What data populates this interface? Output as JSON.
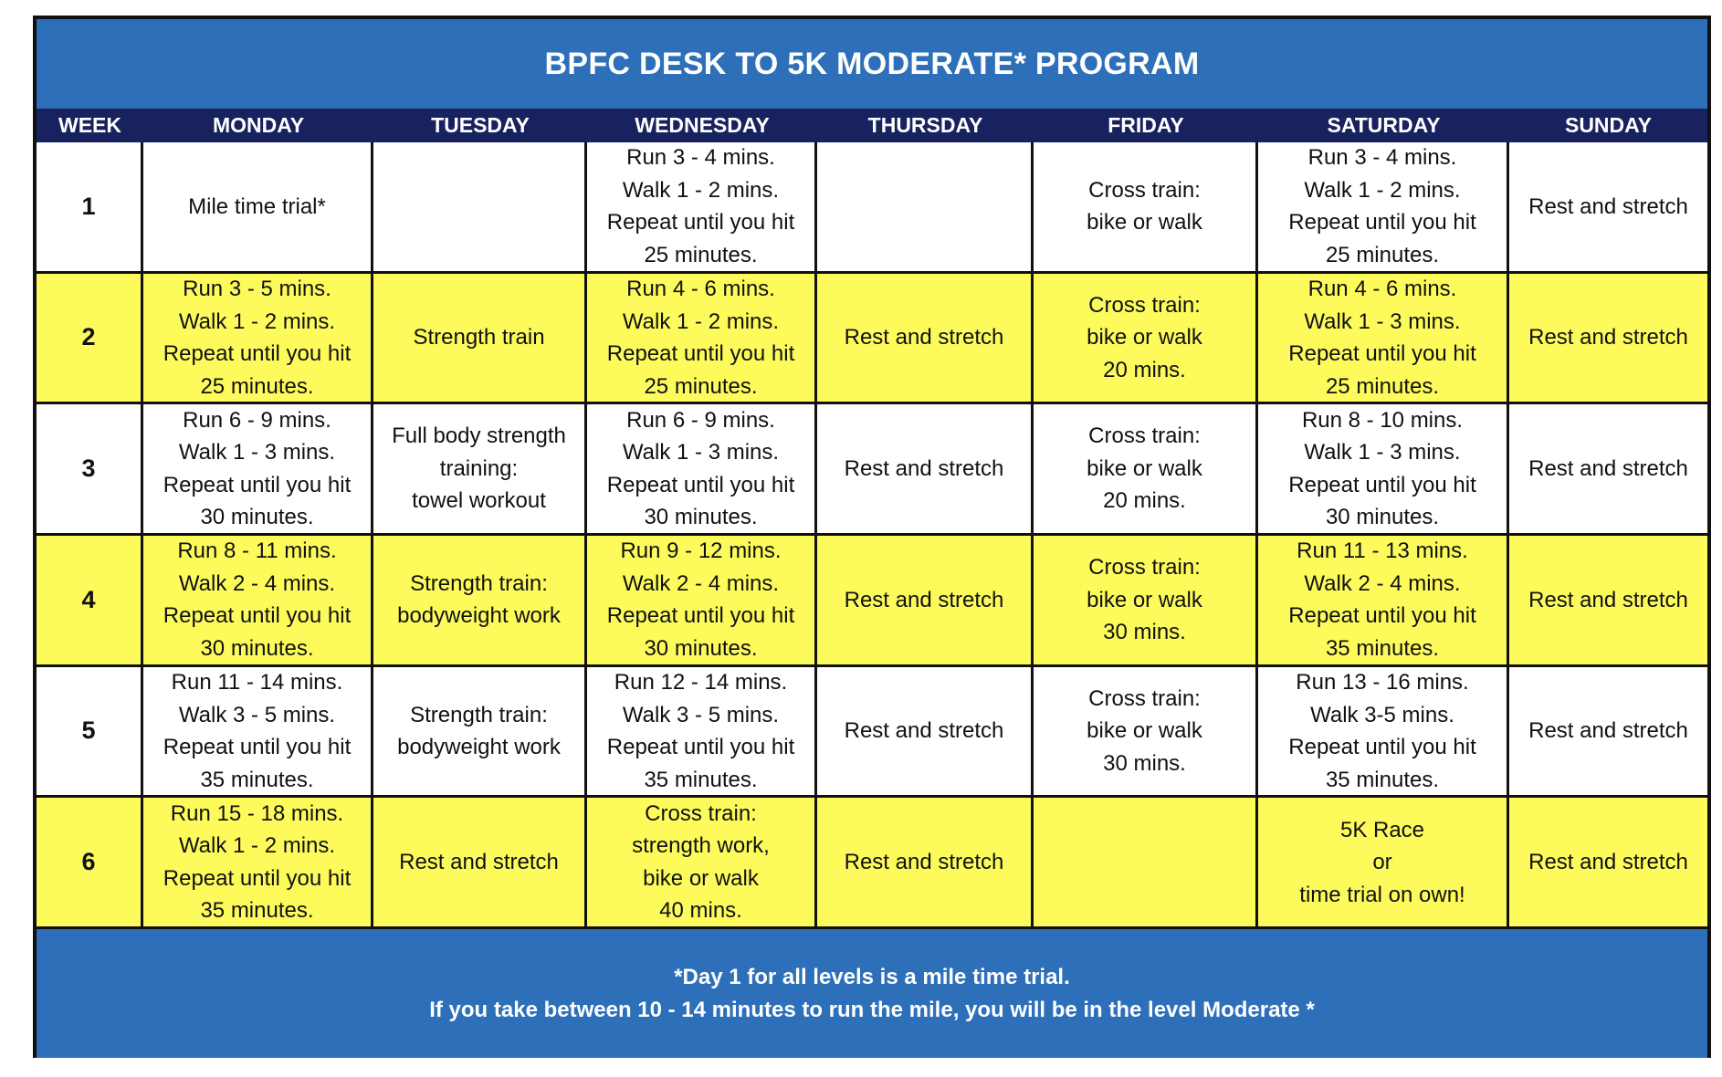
{
  "title": "BPFC DESK TO 5K  MODERATE* PROGRAM",
  "headers": [
    "WEEK",
    "MONDAY",
    "TUESDAY",
    "WEDNESDAY",
    "THURSDAY",
    "FRIDAY",
    "SATURDAY",
    "SUNDAY"
  ],
  "colors": {
    "title_bg": "#2d6fb8",
    "header_bg": "#17225e",
    "row_yellow": "#fdfb5b",
    "row_white": "#ffffff"
  },
  "weeks": [
    {
      "week": "1",
      "monday": "Mile time trial*",
      "tuesday": "",
      "wednesday": "Run 3 - 4 mins.\nWalk 1 - 2 mins.\nRepeat until you hit\n25 minutes.",
      "thursday": "",
      "friday": "Cross train:\nbike or walk",
      "saturday": "Run 3  - 4 mins.\nWalk 1 - 2 mins.\nRepeat until you hit\n25 minutes.",
      "sunday": "Rest and stretch"
    },
    {
      "week": "2",
      "monday": "Run 3 - 5 mins.\nWalk 1 - 2 mins.\nRepeat until you hit\n25 minutes.",
      "tuesday": "Strength train",
      "wednesday": "Run 4  - 6 mins.\nWalk 1 - 2 mins.\nRepeat until you hit\n25 minutes.",
      "thursday": "Rest and stretch",
      "friday": "Cross train:\nbike or walk\n20 mins.",
      "saturday": "Run 4  - 6 mins.\nWalk 1 - 3 mins.\nRepeat until you hit\n25 minutes.",
      "sunday": "Rest and stretch"
    },
    {
      "week": "3",
      "monday": "Run 6  - 9 mins.\nWalk 1 - 3 mins.\nRepeat until you hit\n30 minutes.",
      "tuesday": "Full body strength\ntraining:\ntowel workout",
      "wednesday": "Run 6 - 9 mins.\nWalk 1 - 3 mins.\nRepeat until you hit\n30 minutes.",
      "thursday": "Rest and stretch",
      "friday": "Cross train:\nbike or walk\n20 mins.",
      "saturday": "Run 8 - 10 mins.\nWalk 1 - 3 mins.\nRepeat until you hit\n30 minutes.",
      "sunday": "Rest and stretch"
    },
    {
      "week": "4",
      "monday": "Run 8 - 11 mins.\nWalk 2 - 4 mins.\nRepeat until you hit\n30 minutes.",
      "tuesday": "Strength train:\nbodyweight work",
      "wednesday": "Run 9 - 12 mins.\nWalk 2 - 4 mins.\nRepeat until you hit\n30 minutes.",
      "thursday": "Rest and stretch",
      "friday": "Cross train:\nbike or walk\n30 mins.",
      "saturday": "Run 11 - 13 mins.\nWalk 2 - 4 mins.\nRepeat until you hit\n35 minutes.",
      "sunday": "Rest and stretch"
    },
    {
      "week": "5",
      "monday": "Run 11 - 14 mins.\nWalk 3 - 5 mins.\nRepeat until you hit\n35 minutes.",
      "tuesday": "Strength train:\nbodyweight work",
      "wednesday": "Run 12 - 14 mins.\nWalk 3 - 5 mins.\nRepeat until you hit\n35 minutes.",
      "thursday": "Rest and stretch",
      "friday": "Cross train:\nbike or walk\n30 mins.",
      "saturday": "Run 13 - 16 mins.\nWalk 3-5 mins.\nRepeat until you hit\n35 minutes.",
      "sunday": "Rest and stretch"
    },
    {
      "week": "6",
      "monday": "Run 15 - 18 mins.\nWalk 1 - 2 mins.\nRepeat until you hit\n35 minutes.",
      "tuesday": "Rest and stretch",
      "wednesday": "Cross train:\nstrength work,\nbike or walk\n40 mins.",
      "thursday": "Rest and stretch",
      "friday": "",
      "saturday": "5K Race\nor\ntime trial on own!",
      "sunday": "Rest and stretch"
    }
  ],
  "footer": {
    "line1": "*Day 1 for all levels is a mile time trial.",
    "line2": "If you take between 10 - 14 minutes to run the mile, you will be in the level Moderate *"
  }
}
